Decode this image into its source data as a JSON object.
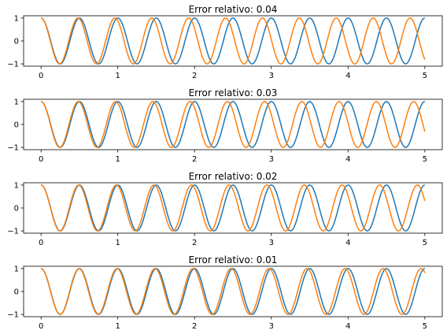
{
  "chart_data": [
    {
      "type": "line",
      "title": "Error relativo: 0.04",
      "xlim": [
        0,
        5
      ],
      "ylim": [
        -1,
        1
      ],
      "xticks": [
        0,
        1,
        2,
        3,
        4,
        5
      ],
      "yticks": [
        -1,
        0,
        1
      ],
      "grid": false,
      "series": [
        {
          "function": "cos(2*pi*2*x)",
          "color": "#1f77b4"
        },
        {
          "function": "cos(2*pi*2*x*1.04)",
          "color": "#ff7f0e"
        }
      ]
    },
    {
      "type": "line",
      "title": "Error relativo: 0.03",
      "xlim": [
        0,
        5
      ],
      "ylim": [
        -1,
        1
      ],
      "xticks": [
        0,
        1,
        2,
        3,
        4,
        5
      ],
      "yticks": [
        -1,
        0,
        1
      ],
      "grid": false,
      "series": [
        {
          "function": "cos(2*pi*2*x)",
          "color": "#1f77b4"
        },
        {
          "function": "cos(2*pi*2*x*1.03)",
          "color": "#ff7f0e"
        }
      ]
    },
    {
      "type": "line",
      "title": "Error relativo: 0.02",
      "xlim": [
        0,
        5
      ],
      "ylim": [
        -1,
        1
      ],
      "xticks": [
        0,
        1,
        2,
        3,
        4,
        5
      ],
      "yticks": [
        -1,
        0,
        1
      ],
      "grid": false,
      "series": [
        {
          "function": "cos(2*pi*2*x)",
          "color": "#1f77b4"
        },
        {
          "function": "cos(2*pi*2*x*1.02)",
          "color": "#ff7f0e"
        }
      ]
    },
    {
      "type": "line",
      "title": "Error relativo: 0.01",
      "xlim": [
        0,
        5
      ],
      "ylim": [
        -1,
        1
      ],
      "xticks": [
        0,
        1,
        2,
        3,
        4,
        5
      ],
      "yticks": [
        -1,
        0,
        1
      ],
      "grid": false,
      "series": [
        {
          "function": "cos(2*pi*2*x)",
          "color": "#1f77b4"
        },
        {
          "function": "cos(2*pi*2*x*1.01)",
          "color": "#ff7f0e"
        }
      ]
    }
  ]
}
